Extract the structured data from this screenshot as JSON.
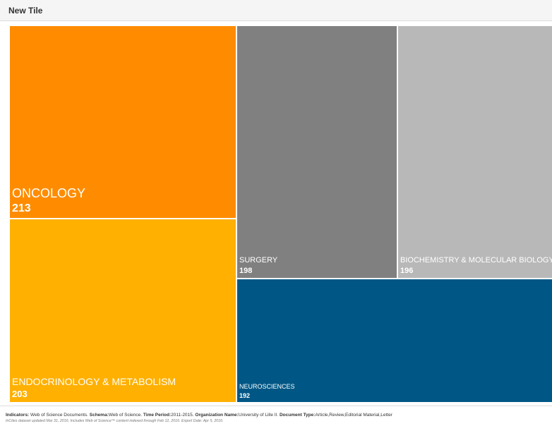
{
  "tile": {
    "title": "New Tile"
  },
  "chart_data": {
    "type": "treemap",
    "items": [
      {
        "label": "ONCOLOGY",
        "value": 213,
        "color": "#ff8c00"
      },
      {
        "label": "ENDOCRINOLOGY & METABOLISM",
        "value": 203,
        "color": "#ffb000"
      },
      {
        "label": "SURGERY",
        "value": 198,
        "color": "#808080"
      },
      {
        "label": "BIOCHEMISTRY & MOLECULAR BIOLOGY",
        "value": 196,
        "color": "#b8b8b8"
      },
      {
        "label": "NEUROSCIENCES",
        "value": 192,
        "color": "#005785"
      }
    ]
  },
  "footer": {
    "indicators_label": "Indicators:",
    "indicators_value": "Web of Science Documents.",
    "schema_label": "Schema:",
    "schema_value": "Web of Science.",
    "time_period_label": "Time Period:",
    "time_period_value": "2011-2015.",
    "organization_label": "Organization Name:",
    "organization_value": "University of Lille II.",
    "document_type_label": "Document Type:",
    "document_type_value": "Article,Review,Editorial Material,Letter",
    "note": "InCites dataset updated Mar 31, 2016. Includes Web of Science™ content indexed through Feb 12, 2016. Export Date: Apr 5, 2016."
  }
}
